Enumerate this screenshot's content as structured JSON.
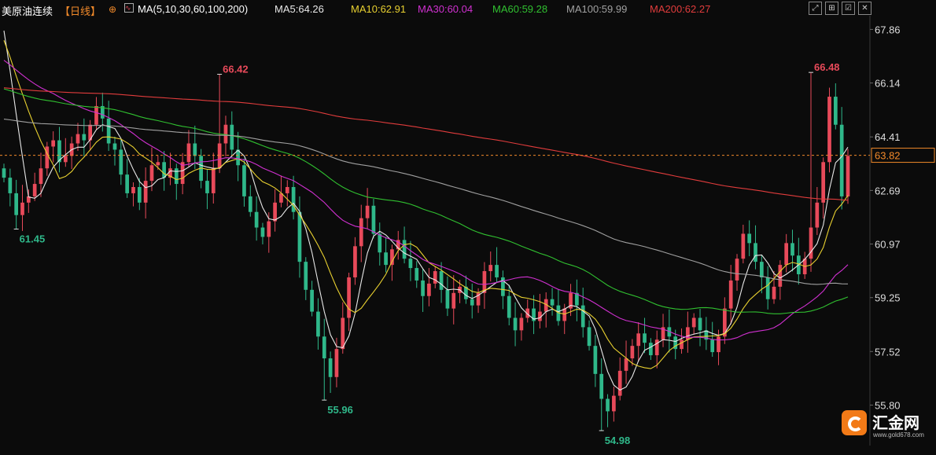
{
  "header": {
    "symbol": "美原油连续",
    "period": "【日线】",
    "ma_label": "MA(5,10,30,60,100,200)",
    "ma_values": [
      {
        "text": "MA5:64.26",
        "color": "#e8e8e8"
      },
      {
        "text": "MA10:62.91",
        "color": "#e8d030"
      },
      {
        "text": "MA30:60.04",
        "color": "#d030d0"
      },
      {
        "text": "MA60:59.28",
        "color": "#30c030"
      },
      {
        "text": "MA100:59.99",
        "color": "#a0a0a0"
      },
      {
        "text": "MA200:62.27",
        "color": "#e03c3c"
      }
    ],
    "toolbar_icons": [
      "expand-icon",
      "shrink-icon",
      "chart-settings-icon",
      "close-icon"
    ]
  },
  "colors": {
    "up": "#e84a5a",
    "down": "#2fb88a",
    "background": "#0b0b0b",
    "grid": "#2a2a2a",
    "current_price": "#f28a2a"
  },
  "chart_data": {
    "type": "candlestick",
    "y_ticks": [
      "67.86",
      "66.14",
      "64.41",
      "62.69",
      "60.97",
      "59.25",
      "57.52",
      "55.80"
    ],
    "ylim": [
      54.5,
      68.3
    ],
    "current_price": "63.82",
    "annotations": [
      {
        "text": "61.45",
        "index": 2,
        "value": 61.45,
        "type": "low"
      },
      {
        "text": "66.42",
        "index": 35,
        "value": 66.42,
        "type": "high"
      },
      {
        "text": "55.96",
        "index": 52,
        "value": 55.96,
        "type": "low"
      },
      {
        "text": "54.98",
        "index": 97,
        "value": 54.98,
        "type": "low"
      },
      {
        "text": "66.48",
        "index": 131,
        "value": 66.48,
        "type": "high"
      }
    ],
    "closes": [
      63.1,
      62.6,
      61.9,
      62.3,
      62.5,
      62.9,
      63.4,
      64.1,
      64.3,
      63.6,
      63.8,
      64.2,
      64.5,
      64.3,
      64.8,
      65.4,
      65.0,
      64.2,
      64.0,
      63.2,
      62.6,
      62.8,
      62.3,
      63.0,
      63.5,
      63.6,
      63.1,
      63.4,
      62.9,
      63.6,
      64.2,
      63.8,
      63.0,
      62.6,
      63.4,
      64.2,
      64.8,
      64.0,
      63.5,
      62.5,
      62.0,
      61.5,
      61.2,
      61.7,
      62.3,
      62.6,
      62.8,
      62.0,
      60.4,
      59.5,
      58.8,
      58.0,
      57.3,
      56.7,
      57.6,
      58.6,
      59.9,
      60.9,
      61.8,
      62.2,
      61.3,
      60.7,
      60.3,
      60.8,
      61.1,
      60.5,
      60.2,
      59.8,
      59.3,
      59.7,
      60.1,
      59.5,
      58.9,
      59.4,
      59.6,
      59.2,
      59.0,
      59.4,
      60.1,
      60.3,
      59.9,
      59.3,
      58.6,
      58.2,
      58.6,
      58.9,
      58.5,
      58.8,
      59.2,
      59.0,
      58.5,
      58.9,
      59.4,
      59.0,
      58.3,
      57.7,
      56.8,
      56.0,
      55.6,
      56.1,
      56.9,
      57.3,
      57.7,
      58.1,
      57.8,
      57.4,
      57.9,
      58.3,
      58.0,
      57.6,
      57.9,
      58.3,
      58.6,
      58.2,
      57.9,
      57.5,
      58.0,
      58.9,
      59.8,
      60.5,
      61.3,
      61.0,
      60.4,
      59.9,
      59.2,
      59.6,
      60.3,
      61.0,
      60.6,
      60.0,
      60.5,
      61.5,
      62.3,
      63.6,
      65.7,
      64.8,
      62.5,
      63.8
    ]
  }
}
